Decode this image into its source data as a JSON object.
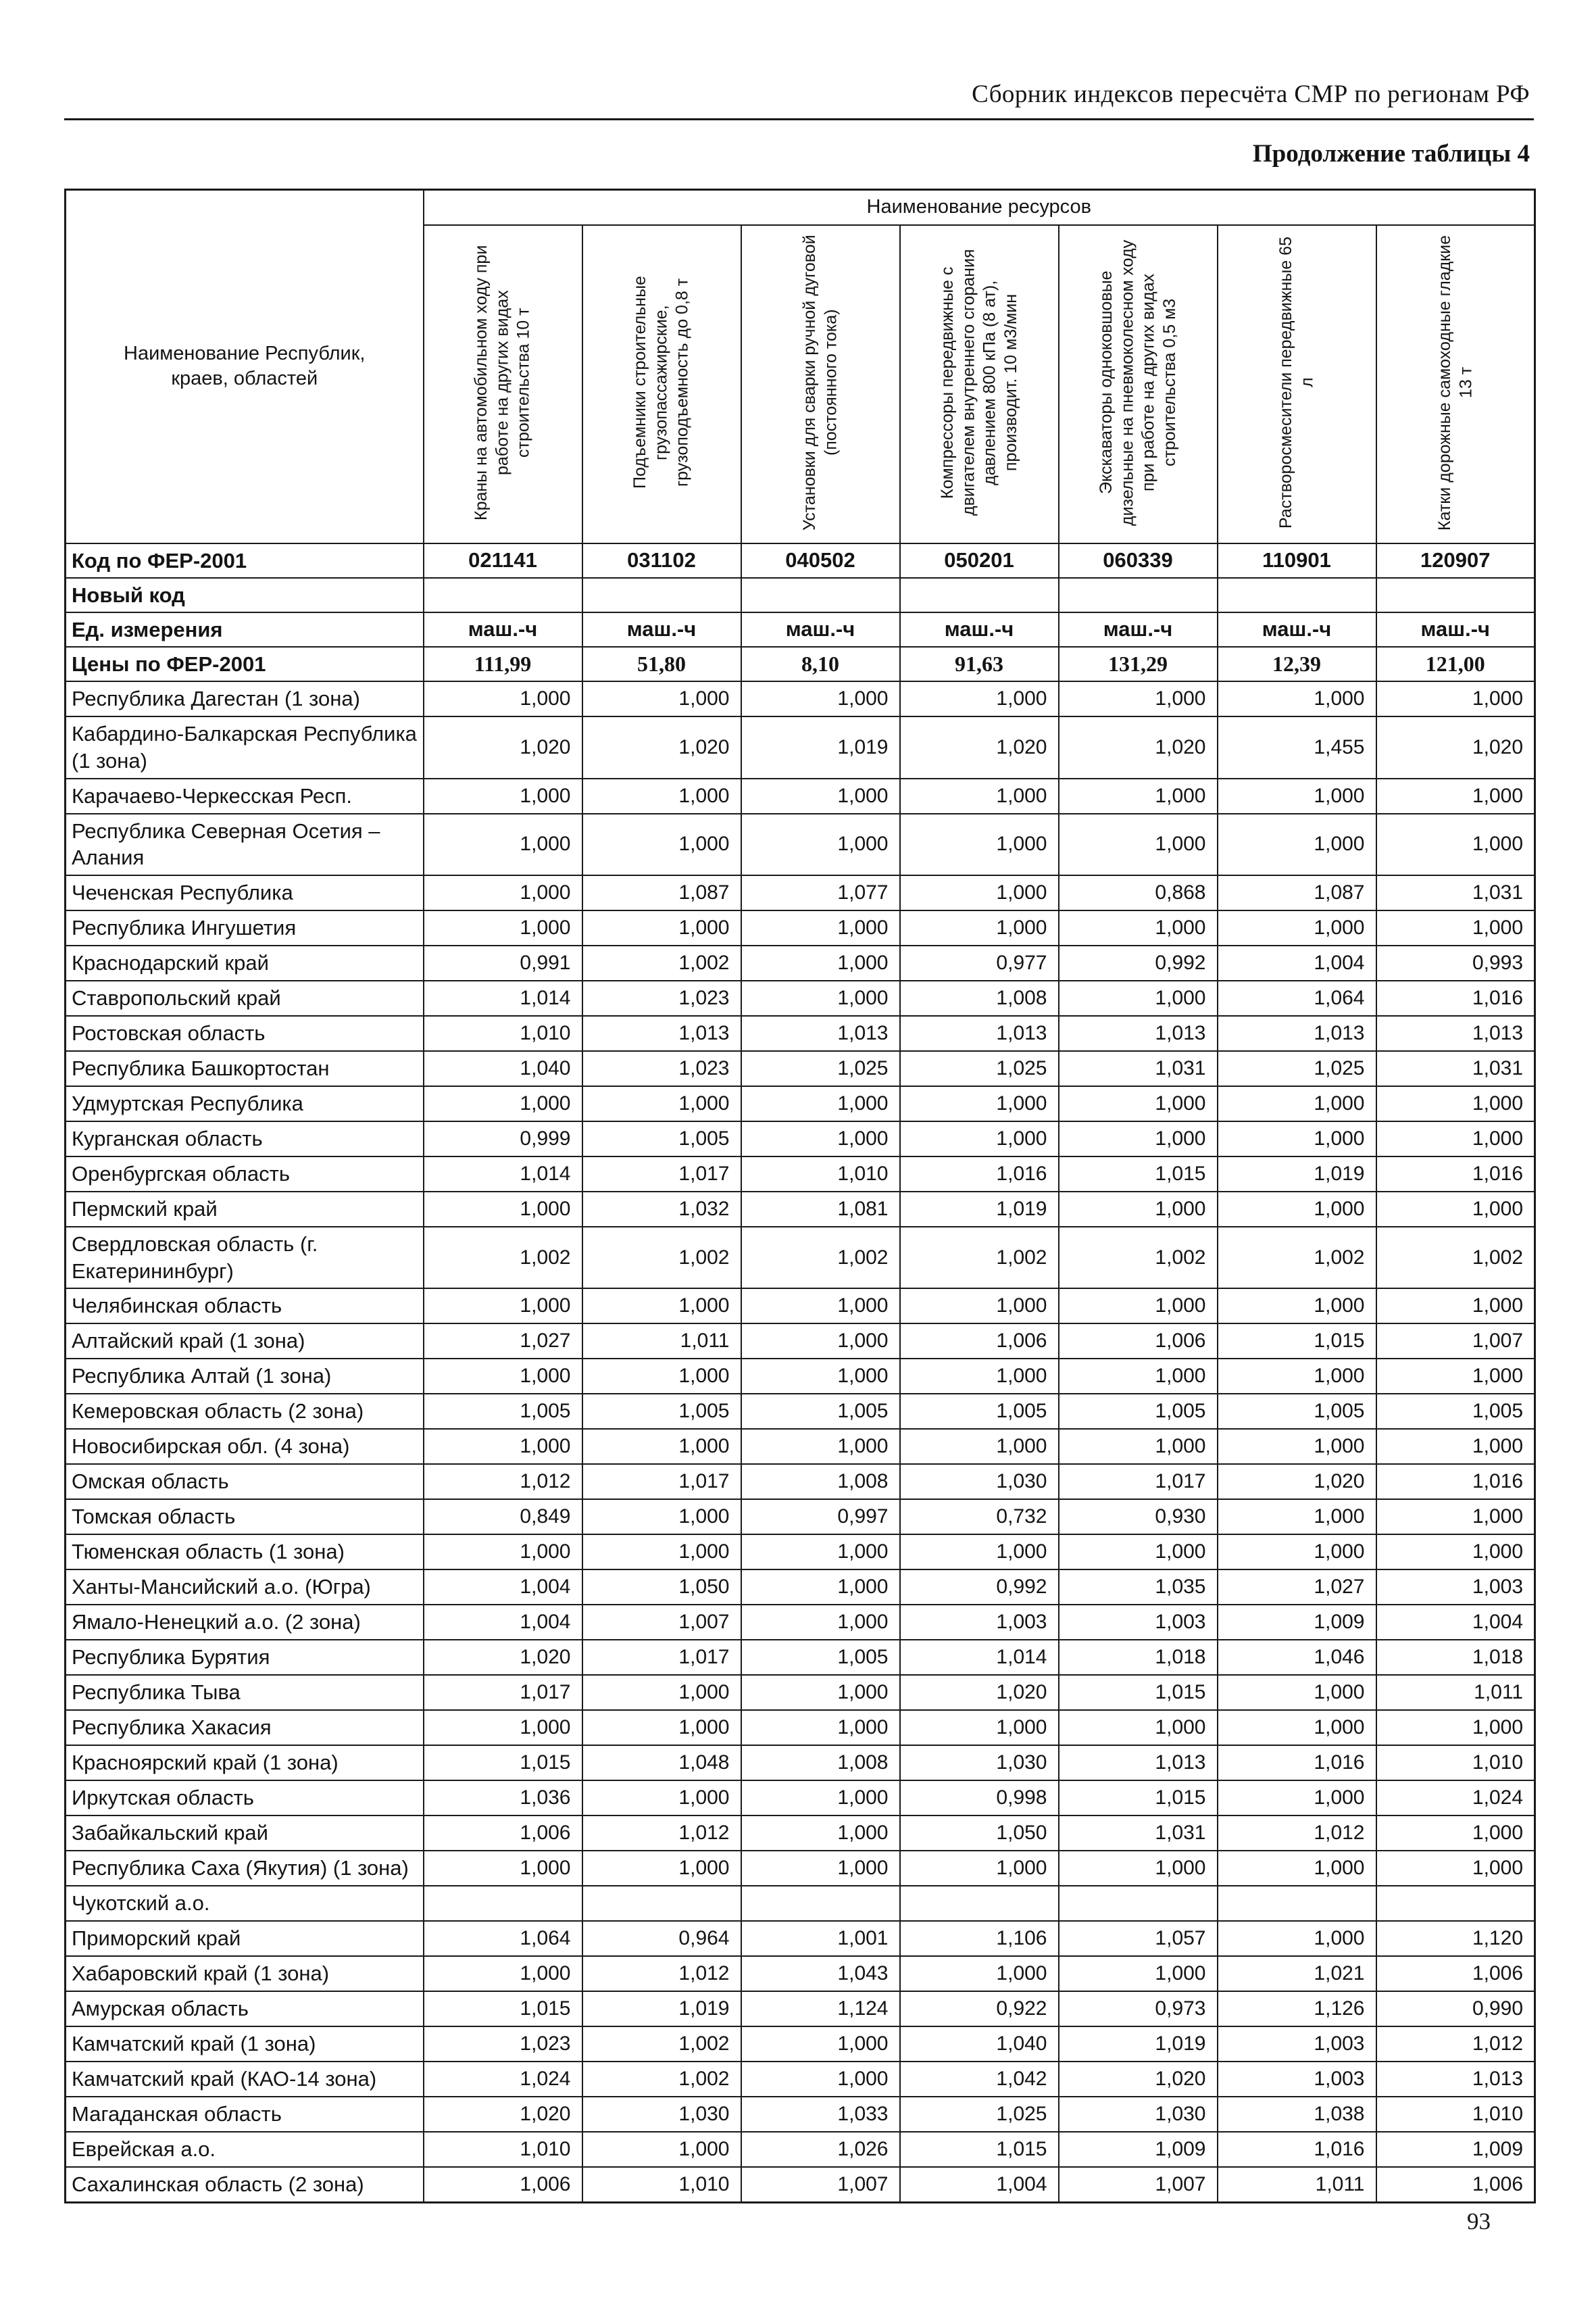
{
  "page": {
    "header_title": "Сборник индексов пересчёта СМР  по регионам РФ",
    "subtitle": "Продолжение таблицы 4",
    "page_number": "93"
  },
  "table": {
    "resources_header": "Наименование ресурсов",
    "first_col_header": "Наименование Республик, краев, областей",
    "columns": [
      "Краны на автомобильном ходу при работе на других видах строительства 10 т",
      "Подъемники строительные грузопассажирские, грузоподъемность до 0,8 т",
      "Установки для сварки ручной дуговой (постоянного тока)",
      "Компрессоры передвижные с двигателем внутреннего сгорания давлением 800 кПа (8 ат), производит. 10 м3/мин",
      "Экскаваторы одноковшовые дизельные на пневмоколесном ходу при работе на других видах строительства 0,5 м3",
      "Растворосмесители передвижные 65 л",
      "Катки дорожные самоходные гладкие 13 т"
    ],
    "meta_rows": [
      {
        "label": "Код по ФЕР-2001",
        "values": [
          "021141",
          "031102",
          "040502",
          "050201",
          "060339",
          "110901",
          "120907"
        ]
      },
      {
        "label": "Новый код",
        "values": [
          "",
          "",
          "",
          "",
          "",
          "",
          ""
        ]
      },
      {
        "label": "Ед. измерения",
        "values": [
          "маш.-ч",
          "маш.-ч",
          "маш.-ч",
          "маш.-ч",
          "маш.-ч",
          "маш.-ч",
          "маш.-ч"
        ]
      },
      {
        "label": "Цены по ФЕР-2001",
        "values": [
          "111,99",
          "51,80",
          "8,10",
          "91,63",
          "131,29",
          "12,39",
          "121,00"
        ]
      }
    ],
    "rows": [
      {
        "region": "Республика Дагестан (1 зона)",
        "values": [
          "1,000",
          "1,000",
          "1,000",
          "1,000",
          "1,000",
          "1,000",
          "1,000"
        ]
      },
      {
        "region": "Кабардино-Балкарская Республика (1 зона)",
        "values": [
          "1,020",
          "1,020",
          "1,019",
          "1,020",
          "1,020",
          "1,455",
          "1,020"
        ]
      },
      {
        "region": "Карачаево-Черкесская Респ.",
        "values": [
          "1,000",
          "1,000",
          "1,000",
          "1,000",
          "1,000",
          "1,000",
          "1,000"
        ]
      },
      {
        "region": "Республика Северная Осетия – Алания",
        "values": [
          "1,000",
          "1,000",
          "1,000",
          "1,000",
          "1,000",
          "1,000",
          "1,000"
        ]
      },
      {
        "region": "Чеченская Республика",
        "values": [
          "1,000",
          "1,087",
          "1,077",
          "1,000",
          "0,868",
          "1,087",
          "1,031"
        ]
      },
      {
        "region": "Республика Ингушетия",
        "values": [
          "1,000",
          "1,000",
          "1,000",
          "1,000",
          "1,000",
          "1,000",
          "1,000"
        ]
      },
      {
        "region": "Краснодарский край",
        "values": [
          "0,991",
          "1,002",
          "1,000",
          "0,977",
          "0,992",
          "1,004",
          "0,993"
        ]
      },
      {
        "region": "Ставропольский край",
        "values": [
          "1,014",
          "1,023",
          "1,000",
          "1,008",
          "1,000",
          "1,064",
          "1,016"
        ]
      },
      {
        "region": "Ростовская область",
        "values": [
          "1,010",
          "1,013",
          "1,013",
          "1,013",
          "1,013",
          "1,013",
          "1,013"
        ]
      },
      {
        "region": "Республика Башкортостан",
        "values": [
          "1,040",
          "1,023",
          "1,025",
          "1,025",
          "1,031",
          "1,025",
          "1,031"
        ]
      },
      {
        "region": "Удмуртская Республика",
        "values": [
          "1,000",
          "1,000",
          "1,000",
          "1,000",
          "1,000",
          "1,000",
          "1,000"
        ]
      },
      {
        "region": "Курганская область",
        "values": [
          "0,999",
          "1,005",
          "1,000",
          "1,000",
          "1,000",
          "1,000",
          "1,000"
        ]
      },
      {
        "region": "Оренбургская область",
        "values": [
          "1,014",
          "1,017",
          "1,010",
          "1,016",
          "1,015",
          "1,019",
          "1,016"
        ]
      },
      {
        "region": "Пермский край",
        "values": [
          "1,000",
          "1,032",
          "1,081",
          "1,019",
          "1,000",
          "1,000",
          "1,000"
        ]
      },
      {
        "region": "Свердловская область (г. Екатерининбург)",
        "values": [
          "1,002",
          "1,002",
          "1,002",
          "1,002",
          "1,002",
          "1,002",
          "1,002"
        ]
      },
      {
        "region": "Челябинская область",
        "values": [
          "1,000",
          "1,000",
          "1,000",
          "1,000",
          "1,000",
          "1,000",
          "1,000"
        ]
      },
      {
        "region": "Алтайский край (1 зона)",
        "values": [
          "1,027",
          "1,011",
          "1,000",
          "1,006",
          "1,006",
          "1,015",
          "1,007"
        ]
      },
      {
        "region": "Республика Алтай (1 зона)",
        "values": [
          "1,000",
          "1,000",
          "1,000",
          "1,000",
          "1,000",
          "1,000",
          "1,000"
        ]
      },
      {
        "region": "Кемеровская область (2 зона)",
        "values": [
          "1,005",
          "1,005",
          "1,005",
          "1,005",
          "1,005",
          "1,005",
          "1,005"
        ]
      },
      {
        "region": "Новосибирская обл. (4 зона)",
        "values": [
          "1,000",
          "1,000",
          "1,000",
          "1,000",
          "1,000",
          "1,000",
          "1,000"
        ]
      },
      {
        "region": "Омская область",
        "values": [
          "1,012",
          "1,017",
          "1,008",
          "1,030",
          "1,017",
          "1,020",
          "1,016"
        ]
      },
      {
        "region": "Томская область",
        "values": [
          "0,849",
          "1,000",
          "0,997",
          "0,732",
          "0,930",
          "1,000",
          "1,000"
        ]
      },
      {
        "region": "Тюменская область (1 зона)",
        "values": [
          "1,000",
          "1,000",
          "1,000",
          "1,000",
          "1,000",
          "1,000",
          "1,000"
        ]
      },
      {
        "region": "Ханты-Мансийский а.о. (Югра)",
        "values": [
          "1,004",
          "1,050",
          "1,000",
          "0,992",
          "1,035",
          "1,027",
          "1,003"
        ]
      },
      {
        "region": "Ямало-Ненецкий а.о. (2 зона)",
        "values": [
          "1,004",
          "1,007",
          "1,000",
          "1,003",
          "1,003",
          "1,009",
          "1,004"
        ]
      },
      {
        "region": "Республика Бурятия",
        "values": [
          "1,020",
          "1,017",
          "1,005",
          "1,014",
          "1,018",
          "1,046",
          "1,018"
        ]
      },
      {
        "region": "Республика Тыва",
        "values": [
          "1,017",
          "1,000",
          "1,000",
          "1,020",
          "1,015",
          "1,000",
          "1,011"
        ]
      },
      {
        "region": "Республика Хакасия",
        "values": [
          "1,000",
          "1,000",
          "1,000",
          "1,000",
          "1,000",
          "1,000",
          "1,000"
        ]
      },
      {
        "region": "Красноярский край (1 зона)",
        "values": [
          "1,015",
          "1,048",
          "1,008",
          "1,030",
          "1,013",
          "1,016",
          "1,010"
        ]
      },
      {
        "region": "Иркутская область",
        "values": [
          "1,036",
          "1,000",
          "1,000",
          "0,998",
          "1,015",
          "1,000",
          "1,024"
        ]
      },
      {
        "region": "Забайкальский край",
        "values": [
          "1,006",
          "1,012",
          "1,000",
          "1,050",
          "1,031",
          "1,012",
          "1,000"
        ]
      },
      {
        "region": "Республика Саха (Якутия) (1 зона)",
        "values": [
          "1,000",
          "1,000",
          "1,000",
          "1,000",
          "1,000",
          "1,000",
          "1,000"
        ]
      },
      {
        "region": "Чукотский а.о.",
        "values": [
          "",
          "",
          "",
          "",
          "",
          "",
          ""
        ]
      },
      {
        "region": "Приморский край",
        "values": [
          "1,064",
          "0,964",
          "1,001",
          "1,106",
          "1,057",
          "1,000",
          "1,120"
        ]
      },
      {
        "region": "Хабаровский край (1 зона)",
        "values": [
          "1,000",
          "1,012",
          "1,043",
          "1,000",
          "1,000",
          "1,021",
          "1,006"
        ]
      },
      {
        "region": "Амурская область",
        "values": [
          "1,015",
          "1,019",
          "1,124",
          "0,922",
          "0,973",
          "1,126",
          "0,990"
        ]
      },
      {
        "region": "Камчатский край (1 зона)",
        "values": [
          "1,023",
          "1,002",
          "1,000",
          "1,040",
          "1,019",
          "1,003",
          "1,012"
        ]
      },
      {
        "region": "Камчатский край (КАО-14 зона)",
        "values": [
          "1,024",
          "1,002",
          "1,000",
          "1,042",
          "1,020",
          "1,003",
          "1,013"
        ]
      },
      {
        "region": "Магаданская область",
        "values": [
          "1,020",
          "1,030",
          "1,033",
          "1,025",
          "1,030",
          "1,038",
          "1,010"
        ]
      },
      {
        "region": "Еврейская а.о.",
        "values": [
          "1,010",
          "1,000",
          "1,026",
          "1,015",
          "1,009",
          "1,016",
          "1,009"
        ]
      },
      {
        "region": "Сахалинская область (2 зона)",
        "values": [
          "1,006",
          "1,010",
          "1,007",
          "1,004",
          "1,007",
          "1,011",
          "1,006"
        ]
      }
    ]
  }
}
